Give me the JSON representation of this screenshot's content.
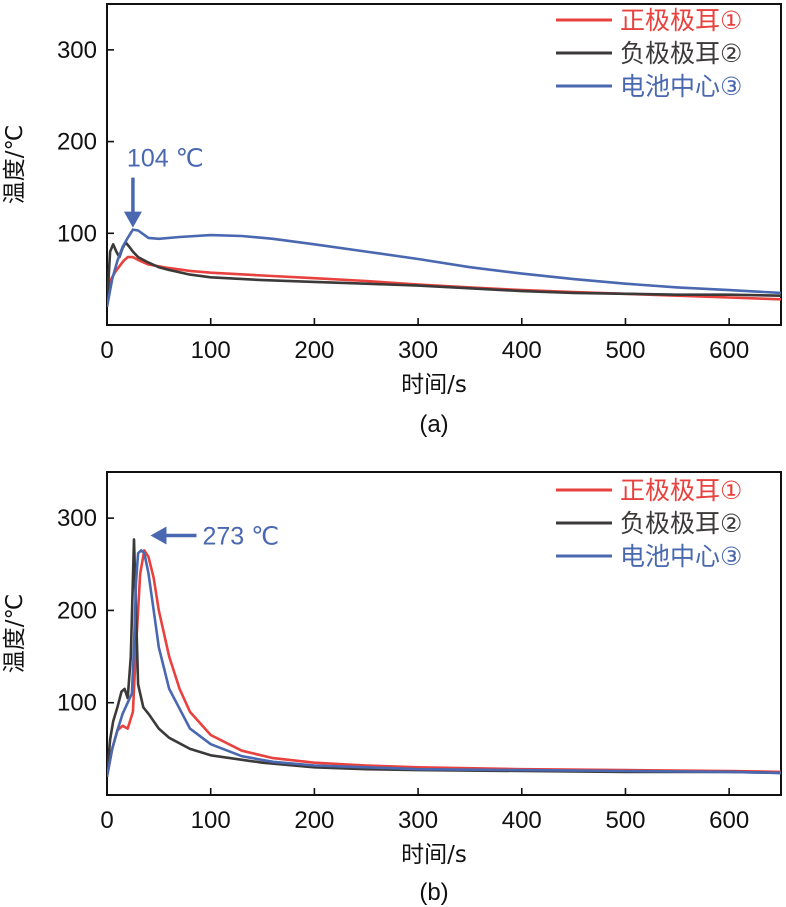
{
  "chart_data": [
    {
      "type": "line",
      "panel_label": "(a)",
      "xlabel": "时间/s",
      "ylabel": "温度/℃",
      "xlim": [
        0,
        650
      ],
      "ylim": [
        0,
        350
      ],
      "xticks": [
        0,
        100,
        200,
        300,
        400,
        500,
        600
      ],
      "yticks": [
        100,
        200,
        300
      ],
      "legend_position": "top-right",
      "annotation": {
        "text": "104 ℃",
        "x": 25,
        "y": 104,
        "arrow": "down"
      },
      "series": [
        {
          "name": "正极极耳①",
          "color": "#e8413e",
          "x": [
            0,
            4,
            8,
            12,
            16,
            20,
            25,
            30,
            40,
            60,
            80,
            100,
            150,
            200,
            250,
            300,
            350,
            400,
            450,
            500,
            550,
            600,
            650
          ],
          "y": [
            20,
            50,
            58,
            64,
            70,
            74,
            74,
            71,
            66,
            62,
            59,
            57,
            54,
            51,
            48,
            44,
            41,
            38,
            36,
            34,
            32,
            30,
            28
          ]
        },
        {
          "name": "负极极耳②",
          "color": "#3c3939",
          "x": [
            0,
            3,
            6,
            9,
            12,
            15,
            18,
            21,
            25,
            30,
            40,
            50,
            60,
            80,
            100,
            150,
            200,
            250,
            300,
            350,
            400,
            450,
            500,
            550,
            600,
            650
          ],
          "y": [
            20,
            80,
            88,
            80,
            74,
            84,
            90,
            86,
            80,
            74,
            68,
            63,
            60,
            55,
            52,
            49,
            47,
            45,
            43,
            40,
            37,
            35,
            34,
            33,
            33,
            32
          ]
        },
        {
          "name": "电池中心③",
          "color": "#4a68b0",
          "x": [
            0,
            5,
            10,
            15,
            20,
            25,
            30,
            35,
            40,
            50,
            70,
            100,
            130,
            160,
            200,
            250,
            300,
            350,
            400,
            450,
            500,
            550,
            600,
            650
          ],
          "y": [
            20,
            50,
            70,
            85,
            95,
            104,
            103,
            99,
            95,
            94,
            96,
            98,
            97,
            94,
            88,
            80,
            72,
            63,
            56,
            50,
            45,
            41,
            38,
            35
          ]
        }
      ]
    },
    {
      "type": "line",
      "panel_label": "(b)",
      "xlabel": "时间/s",
      "ylabel": "温度/℃",
      "xlim": [
        0,
        650
      ],
      "ylim": [
        0,
        350
      ],
      "xticks": [
        0,
        100,
        200,
        300,
        400,
        500,
        600
      ],
      "yticks": [
        100,
        200,
        300
      ],
      "legend_position": "top-right",
      "annotation": {
        "text": "273 ℃",
        "x": 40,
        "y": 265,
        "arrow": "left"
      },
      "series": [
        {
          "name": "正极极耳①",
          "color": "#e8413e",
          "x": [
            0,
            5,
            10,
            15,
            20,
            25,
            28,
            32,
            36,
            40,
            45,
            50,
            60,
            70,
            80,
            100,
            130,
            160,
            200,
            250,
            300,
            400,
            500,
            600,
            650
          ],
          "y": [
            20,
            50,
            70,
            75,
            72,
            90,
            160,
            240,
            265,
            258,
            235,
            200,
            150,
            115,
            90,
            65,
            48,
            40,
            35,
            32,
            30,
            28,
            27,
            26,
            25
          ]
        },
        {
          "name": "负极极耳②",
          "color": "#3c3939",
          "x": [
            0,
            3,
            6,
            10,
            14,
            17,
            20,
            23,
            26,
            28,
            30,
            35,
            40,
            50,
            60,
            80,
            100,
            150,
            200,
            250,
            300,
            400,
            500,
            600,
            650
          ],
          "y": [
            20,
            60,
            80,
            95,
            112,
            115,
            105,
            150,
            277,
            200,
            120,
            95,
            88,
            72,
            62,
            50,
            43,
            35,
            30,
            28,
            27,
            26,
            25,
            25,
            24
          ]
        },
        {
          "name": "电池中心③",
          "color": "#4a68b0",
          "x": [
            0,
            5,
            10,
            15,
            20,
            24,
            26,
            28,
            30,
            33,
            36,
            40,
            45,
            50,
            60,
            80,
            100,
            130,
            160,
            200,
            250,
            300,
            400,
            500,
            600,
            650
          ],
          "y": [
            20,
            50,
            70,
            88,
            100,
            110,
            160,
            230,
            262,
            265,
            262,
            240,
            200,
            160,
            115,
            72,
            55,
            42,
            36,
            32,
            30,
            28,
            27,
            26,
            25,
            24
          ]
        }
      ]
    }
  ]
}
